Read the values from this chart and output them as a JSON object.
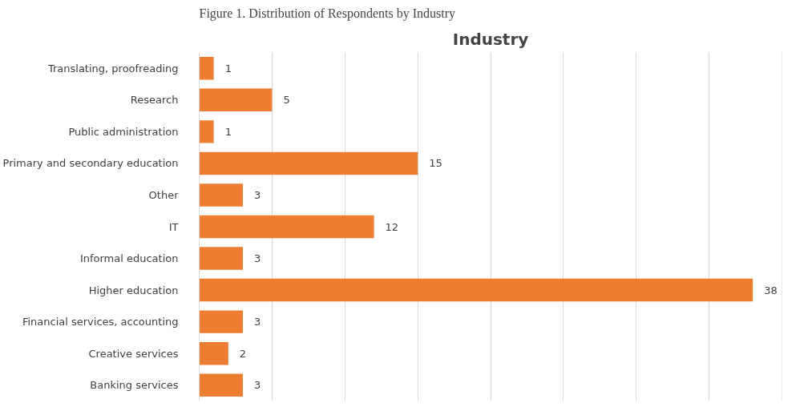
{
  "chart_data": {
    "type": "bar",
    "orientation": "horizontal",
    "title": "Industry",
    "annotations": [
      "Figure 1. Distribution of Respondents by Industry"
    ],
    "categories": [
      "Translating, proofreading",
      "Research",
      "Public administration",
      "Primary and secondary education",
      "Other",
      "IT",
      "Informal education",
      "Higher education",
      "Financial services, accounting",
      "Creative services",
      "Banking services"
    ],
    "values": [
      1,
      5,
      1,
      15,
      3,
      12,
      3,
      38,
      3,
      2,
      3
    ],
    "color": "#ed7d31",
    "xlim": [
      0,
      40
    ],
    "xticks": [
      {
        "value": 0,
        "label": null
      },
      {
        "value": 5,
        "label": null
      },
      {
        "value": 10,
        "label": null
      },
      {
        "value": 15,
        "label": null
      },
      {
        "value": 20,
        "label": null
      },
      {
        "value": 25,
        "label": null
      },
      {
        "value": 30,
        "label": null
      },
      {
        "value": 35,
        "label": null
      },
      {
        "value": 40,
        "label": null
      }
    ],
    "tick_labels": "y",
    "grid": "x",
    "data_labels": true
  }
}
